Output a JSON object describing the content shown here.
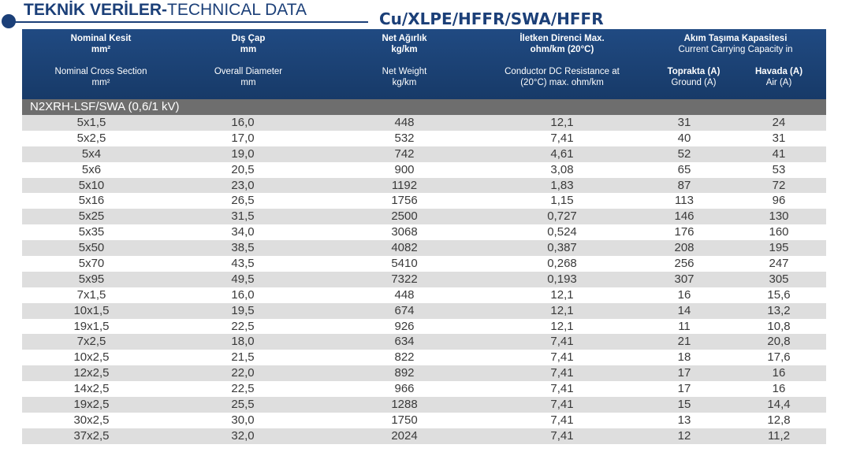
{
  "heading": {
    "title_bold": "TEKNİK VERİLER-",
    "title_regular": "TECHNICAL DATA",
    "subtitle": "Cu/XLPE/HFFR/SWA/HFFR"
  },
  "columns": {
    "nominal_tr": "Nominal Kesit",
    "nominal_tr_unit": "mm²",
    "nominal_en": "Nominal Cross Section",
    "nominal_en_unit": "mm²",
    "diameter_tr": "Dış Çap",
    "diameter_tr_unit": "mm",
    "diameter_en": "Overall Diameter",
    "diameter_en_unit": "mm",
    "weight_tr": "Net Ağırlık",
    "weight_tr_unit": "kg/km",
    "weight_en": "Net Weight",
    "weight_en_unit": "kg/km",
    "resistance_tr": "İletken Direnci Max.",
    "resistance_tr_unit": "ohm/km (20°C)",
    "resistance_en": "Conductor DC Resistance at",
    "resistance_en_unit": "(20°C) max. ohm/km",
    "capacity_tr": "Akım Taşıma Kapasitesi",
    "capacity_en": "Current Carrying Capacity in",
    "ground_tr": "Toprakta (A)",
    "ground_en": "Ground (A)",
    "air_tr": "Havada (A)",
    "air_en": "Air (A)"
  },
  "section": "N2XRH-LSF/SWA (0,6/1 kV)",
  "rows": [
    [
      "5x1,5",
      "16,0",
      "448",
      "12,1",
      "31",
      "24"
    ],
    [
      "5x2,5",
      "17,0",
      "532",
      "7,41",
      "40",
      "31"
    ],
    [
      "5x4",
      "19,0",
      "742",
      "4,61",
      "52",
      "41"
    ],
    [
      "5x6",
      "20,5",
      "900",
      "3,08",
      "65",
      "53"
    ],
    [
      "5x10",
      "23,0",
      "1192",
      "1,83",
      "87",
      "72"
    ],
    [
      "5x16",
      "26,5",
      "1756",
      "1,15",
      "113",
      "96"
    ],
    [
      "5x25",
      "31,5",
      "2500",
      "0,727",
      "146",
      "130"
    ],
    [
      "5x35",
      "34,0",
      "3068",
      "0,524",
      "176",
      "160"
    ],
    [
      "5x50",
      "38,5",
      "4082",
      "0,387",
      "208",
      "195"
    ],
    [
      "5x70",
      "43,5",
      "5410",
      "0,268",
      "256",
      "247"
    ],
    [
      "5x95",
      "49,5",
      "7322",
      "0,193",
      "307",
      "305"
    ],
    [
      "7x1,5",
      "16,0",
      "448",
      "12,1",
      "16",
      "15,6"
    ],
    [
      "10x1,5",
      "19,5",
      "674",
      "12,1",
      "14",
      "13,2"
    ],
    [
      "19x1,5",
      "22,5",
      "926",
      "12,1",
      "11",
      "10,8"
    ],
    [
      "7x2,5",
      "18,0",
      "634",
      "7,41",
      "21",
      "20,8"
    ],
    [
      "10x2,5",
      "21,5",
      "822",
      "7,41",
      "18",
      "17,6"
    ],
    [
      "12x2,5",
      "22,0",
      "892",
      "7,41",
      "17",
      "16"
    ],
    [
      "14x2,5",
      "22,5",
      "966",
      "7,41",
      "17",
      "16"
    ],
    [
      "19x2,5",
      "25,5",
      "1288",
      "7,41",
      "15",
      "14,4"
    ],
    [
      "30x2,5",
      "30,0",
      "1750",
      "7,41",
      "13",
      "12,8"
    ],
    [
      "37x2,5",
      "32,0",
      "2024",
      "7,41",
      "12",
      "11,2"
    ]
  ]
}
